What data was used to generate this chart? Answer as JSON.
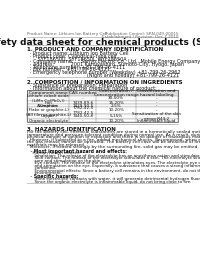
{
  "doc_header_left": "Product Name: Lithium Ion Battery Cell",
  "doc_header_right": "Publication Control: SRN-049-00015\nEstablishment / Revision: Dec.7.2010",
  "title": "Safety data sheet for chemical products (SDS)",
  "section1_title": "1. PRODUCT AND COMPANY IDENTIFICATION",
  "section1_lines": [
    "  · Product name: Lithium Ion Battery Cell",
    "  · Product code: Cylindrical-type cell",
    "       SYF18650U, SYF18650L, SYF18650A",
    "  · Company name:     Sanyo Electric Co., Ltd., Mobile Energy Company",
    "  · Address:           2001 Kamiyashiro, Sumoto-City, Hyogo, Japan",
    "  · Telephone number: +81-799-26-4111",
    "  · Fax number:  +81-799-26-4121",
    "  · Emergency telephone number (Weekday) +81-799-26-2962",
    "                                        (Night and holiday) +81-799-26-4121"
  ],
  "section2_title": "2. COMPOSITION / INFORMATION ON INGREDIENTS",
  "section2_lines": [
    "  · Substance or preparation: Preparation",
    "  · Information about the chemical nature of product:"
  ],
  "table_headers": [
    "Component name",
    "CAS number",
    "Concentration /\nConcentration range",
    "Classification and\nhazard labeling"
  ],
  "table_rows": [
    [
      "Lithium cobalt oxide\n(LiMn Co(PbO₂))",
      "-",
      "30-50%",
      "-"
    ],
    [
      "Iron",
      "7439-89-6",
      "15-20%",
      "-"
    ],
    [
      "Aluminium",
      "7429-90-5",
      "2-5%",
      "-"
    ],
    [
      "Graphite\n(Flake or graphite-L)\n(All film or graphite-L)",
      "7782-42-5\n7782-42-5",
      "10-20%",
      "-"
    ],
    [
      "Copper",
      "7440-50-8",
      "5-15%",
      "Sensitization of the skin\ngroup R43.2"
    ],
    [
      "Organic electrolyte",
      "-",
      "10-20%",
      "Inflammable liquid"
    ]
  ],
  "section3_title": "3. HAZARDS IDENTIFICATION",
  "section3_para": [
    "For the battery cell, chemical substances are stored in a hermetically sealed metal case, designed to withstand",
    "temperature and pressure-tolerant condition during normal use. As a result, during normal use, there is no",
    "physical danger of ignition or explosion and there is no danger of hazardous materials leakage.",
    "  However, if subjected to a fire, added mechanical shocks, decomposed, when electric-electric dry tests use,",
    "the gas release cannot be operated. The battery cell case will be breached of fire-particles, hazardous",
    "materials may be released.",
    "  Moreover, if heated strongly by the surrounding fire, solid gas may be emitted."
  ],
  "bullet1": "  · Most important hazard and effects:",
  "human_label": "    Human health effects:",
  "human_lines": [
    "      Inhalation: The release of the electrolyte has an anesthesia action and stimulates a respiratory tract.",
    "      Skin contact: The release of the electrolyte stimulates a skin. The electrolyte skin contact causes a",
    "      sore and stimulation on the skin.",
    "      Eye contact: The release of the electrolyte stimulates eyes. The electrolyte eye contact causes a sore",
    "      and stimulation on the eye. Especially, a substance that causes a strong inflammation of the eyes is",
    "      combined.",
    "      Environmental effects: Since a battery cell remains in the environment, do not throw out it into the",
    "      environment."
  ],
  "bullet2": "  · Specific hazards:",
  "specific_lines": [
    "      If the electrolyte contacts with water, it will generate detrimental hydrogen fluoride.",
    "      Since the organic electrolyte is inflammable liquid, do not bring close to fire."
  ],
  "footer_line": true,
  "bg_color": "#ffffff",
  "text_color": "#111111",
  "gray_text": "#666666",
  "line_color": "#999999"
}
